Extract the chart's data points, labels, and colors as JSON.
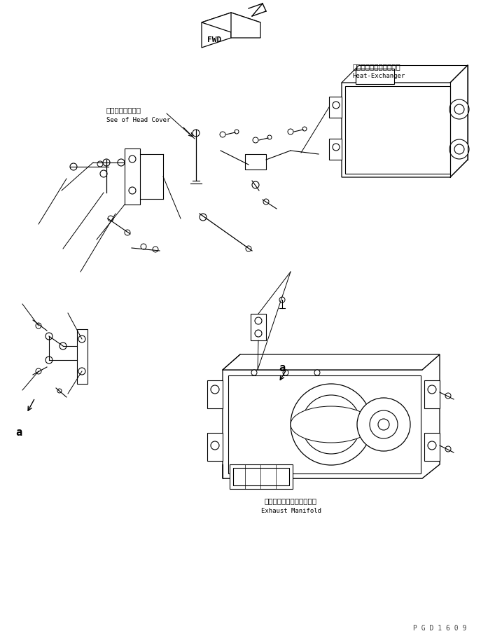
{
  "bg_color": "#ffffff",
  "line_color": "#000000",
  "fig_width": 7.17,
  "fig_height": 9.08,
  "dpi": 100,
  "watermark": "P G D 1 6 0 9",
  "label_fwd": "FWD",
  "label_head_cover_jp": "ヘッドカバー参照",
  "label_head_cover_en": "See of Head Cover",
  "label_heat_exchanger_jp": "ヒートエクスチェンジャ",
  "label_heat_exchanger_en": "Heat-Exchanger",
  "label_exhaust_jp": "エキゾーストマニホールド",
  "label_exhaust_en": "Exhaust Manifold",
  "label_a": "a"
}
